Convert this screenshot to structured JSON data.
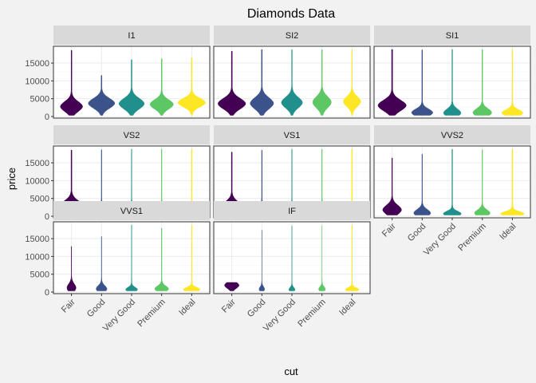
{
  "chart_data": {
    "type": "violin",
    "title": "Diamonds Data",
    "xlabel": "cut",
    "ylabel": "price",
    "ylim": [
      0,
      18823
    ],
    "y_ticks": [
      0,
      5000,
      10000,
      15000
    ],
    "y_tick_labels": [
      "0",
      "5000",
      "10000",
      "15000"
    ],
    "categories": [
      "Fair",
      "Good",
      "Very Good",
      "Premium",
      "Ideal"
    ],
    "category_colors": [
      "#440154",
      "#3b528b",
      "#21908c",
      "#5dc863",
      "#fde725"
    ],
    "facet_ncol": 3,
    "facets": [
      {
        "name": "I1",
        "max": [
          18574,
          11548,
          15984,
          16193,
          16528
        ],
        "peak": [
          2800,
          3700,
          3600,
          3400,
          3900
        ],
        "spread": [
          1400,
          1400,
          1500,
          1300,
          1200
        ],
        "width": [
          0.74,
          0.88,
          0.84,
          0.78,
          0.92
        ]
      },
      {
        "name": "SI2",
        "max": [
          18308,
          18788,
          18759,
          18784,
          18804
        ],
        "peak": [
          3600,
          3700,
          3900,
          4000,
          4200
        ],
        "spread": [
          1500,
          1600,
          1500,
          1600,
          1400
        ],
        "width": [
          0.92,
          0.78,
          0.7,
          0.62,
          0.58
        ]
      },
      {
        "name": "SI1",
        "max": [
          18818,
          18707,
          18818,
          18797,
          18781
        ],
        "peak": [
          3100,
          1100,
          1000,
          1100,
          1000
        ],
        "spread": [
          1500,
          1000,
          1100,
          1100,
          900
        ],
        "width": [
          0.94,
          0.7,
          0.58,
          0.62,
          0.7
        ]
      },
      {
        "name": "VS2",
        "max": [
          18565,
          18680,
          18823,
          18823,
          18791
        ],
        "peak": [
          2700,
          1000,
          900,
          1000,
          900
        ],
        "spread": [
          1500,
          1300,
          1300,
          1300,
          1000
        ],
        "width": [
          0.84,
          0.5,
          0.52,
          0.5,
          0.72
        ]
      },
      {
        "name": "VS1",
        "max": [
          17995,
          18500,
          18780,
          18795,
          18795
        ],
        "peak": [
          2400,
          1000,
          900,
          1000,
          900
        ],
        "spread": [
          1500,
          1300,
          1300,
          1300,
          1000
        ],
        "width": [
          0.8,
          0.56,
          0.48,
          0.52,
          0.82
        ]
      },
      {
        "name": "VVS2",
        "max": [
          16364,
          17449,
          18768,
          18680,
          18768
        ],
        "peak": [
          1800,
          900,
          700,
          900,
          700
        ],
        "spread": [
          1300,
          1000,
          700,
          900,
          600
        ],
        "width": [
          0.62,
          0.56,
          0.6,
          0.52,
          0.8
        ]
      },
      {
        "name": "VVS1",
        "max": [
          12800,
          15600,
          18800,
          17900,
          18800
        ],
        "peak": [
          1200,
          900,
          700,
          900,
          700
        ],
        "spread": [
          1100,
          900,
          600,
          800,
          600
        ],
        "width": [
          0.3,
          0.36,
          0.4,
          0.46,
          0.56
        ]
      },
      {
        "name": "IF",
        "max": [
          2700,
          17400,
          18600,
          18600,
          18800
        ],
        "peak": [
          1900,
          800,
          700,
          800,
          700
        ],
        "spread": [
          900,
          700,
          600,
          700,
          500
        ],
        "width": [
          0.48,
          0.18,
          0.2,
          0.22,
          0.46
        ]
      }
    ],
    "grid": true,
    "legend": "none"
  }
}
